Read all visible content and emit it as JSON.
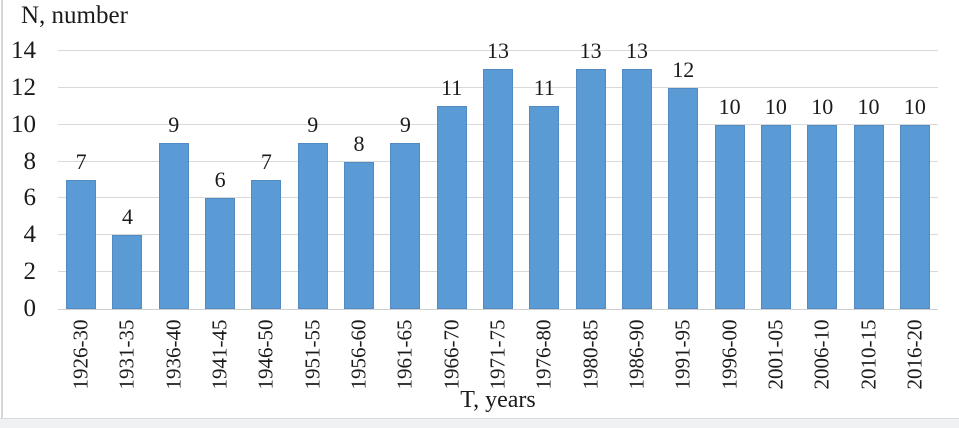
{
  "chart_data": {
    "type": "bar",
    "categories": [
      "1926-30",
      "1931-35",
      "1936-40",
      "1941-45",
      "1946-50",
      "1951-55",
      "1956-60",
      "1961-65",
      "1966-70",
      "1971-75",
      "1976-80",
      "1980-85",
      "1986-90",
      "1991-95",
      "1996-00",
      "2001-05",
      "2006-10",
      "2010-15",
      "2016-20"
    ],
    "values": [
      7,
      4,
      9,
      6,
      7,
      9,
      8,
      9,
      11,
      13,
      11,
      13,
      13,
      12,
      10,
      10,
      10,
      10,
      10
    ],
    "ylabel": "N, number",
    "xlabel": "T, years",
    "yticks": [
      0,
      2,
      4,
      6,
      8,
      10,
      12,
      14
    ],
    "ylim": [
      0,
      14
    ],
    "grid": true,
    "legend": false,
    "data_labels": true,
    "bar_color": "#5b9bd5",
    "grid_color": "#d9d9d9",
    "text_color": "#1b1b1b"
  }
}
